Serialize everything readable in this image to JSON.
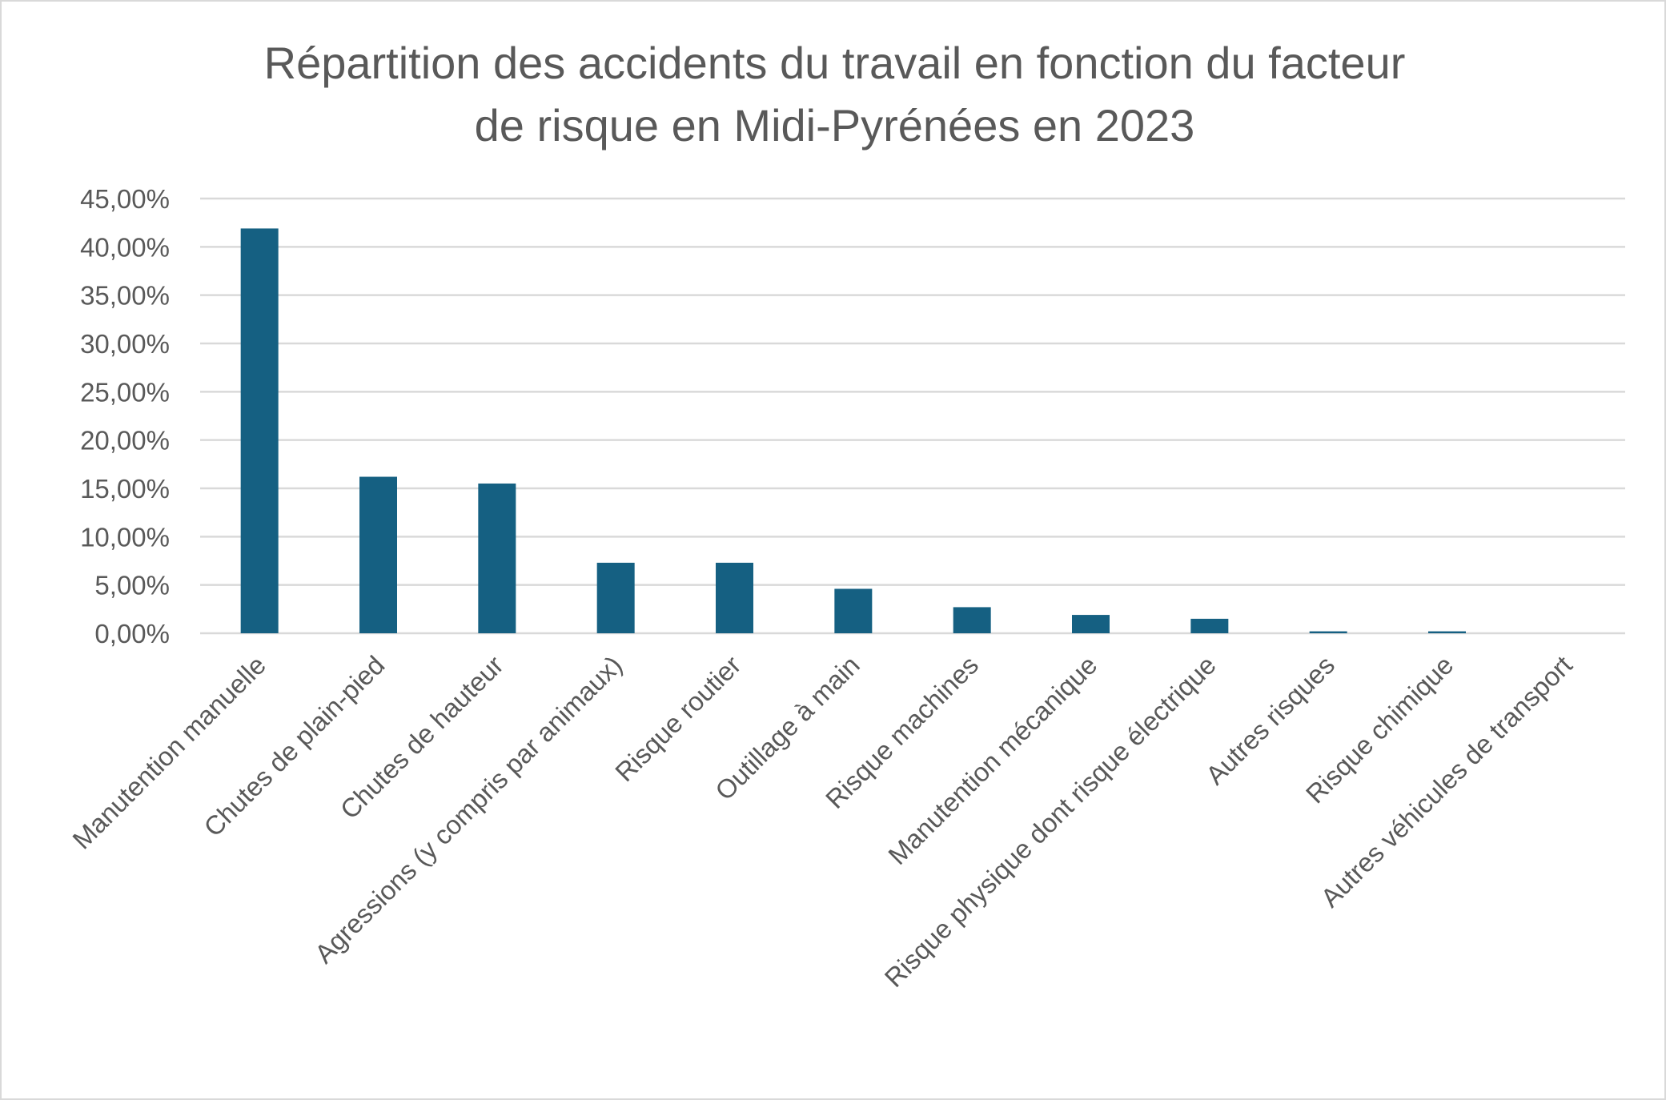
{
  "chart_data": {
    "type": "bar",
    "title_lines": [
      "Répartition des accidents du travail en fonction du facteur",
      "de risque en Midi-Pyrénées en 2023"
    ],
    "categories": [
      "Manutention manuelle",
      "Chutes de plain-pied",
      "Chutes de hauteur",
      "Agressions (y compris par animaux)",
      "Risque routier",
      "Outillage à main",
      "Risque machines",
      "Manutention mécanique",
      "Risque physique dont risque électrique",
      "Autres risques",
      "Risque chimique",
      "Autres véhicules de transport"
    ],
    "values": [
      41.9,
      16.2,
      15.5,
      7.3,
      7.3,
      4.6,
      2.7,
      1.9,
      1.5,
      0.2,
      0.2,
      0.0
    ],
    "ylim": [
      0,
      45
    ],
    "yticks": [
      "0,00%",
      "5,00%",
      "10,00%",
      "15,00%",
      "20,00%",
      "25,00%",
      "30,00%",
      "35,00%",
      "40,00%",
      "45,00%"
    ],
    "grid": true,
    "legend": "none",
    "colors": {
      "bar": "#156082",
      "grid": "#d9d9d9",
      "text": "#595959"
    }
  }
}
